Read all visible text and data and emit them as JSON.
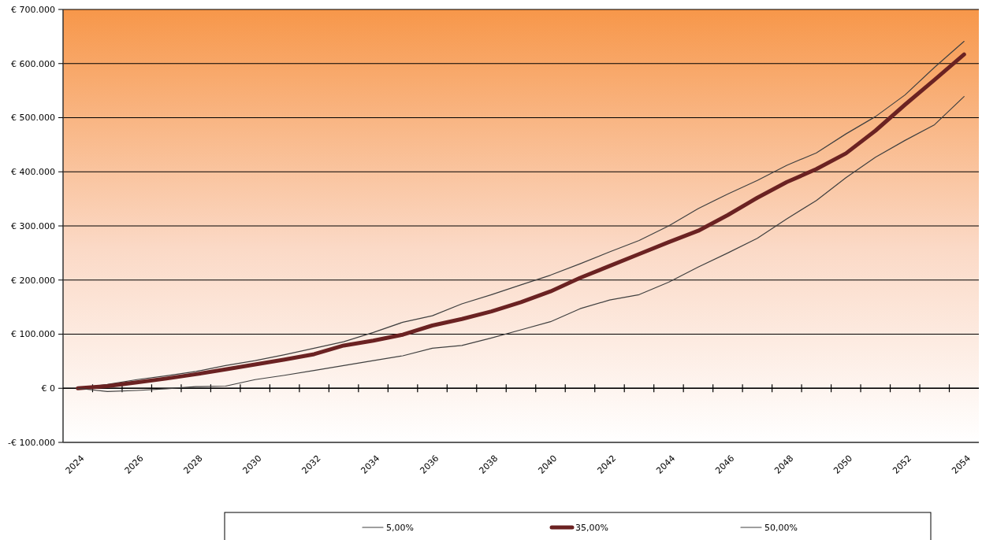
{
  "chart_data": {
    "type": "line",
    "categories": [
      "2024",
      null,
      "2026",
      null,
      "2028",
      null,
      "2030",
      null,
      "2032",
      null,
      "2034",
      null,
      "2036",
      null,
      "2038",
      null,
      "2040",
      null,
      "2042",
      null,
      "2044",
      null,
      "2046",
      null,
      "2048",
      null,
      "2050",
      null,
      "2052",
      null,
      "2054"
    ],
    "series": [
      {
        "name": "5,00%",
        "color": "#404040",
        "values": [
          0,
          7000,
          16000,
          23000,
          31000,
          42000,
          51000,
          62000,
          74000,
          86000,
          103000,
          122000,
          134000,
          156000,
          173000,
          191000,
          209000,
          230000,
          252000,
          273000,
          300000,
          332000,
          359000,
          384000,
          412000,
          435000,
          470000,
          502000,
          542000,
          593000,
          641000
        ]
      },
      {
        "name": "35,00%",
        "color": "#6b2222",
        "values": [
          0,
          4000,
          11000,
          18000,
          26000,
          35000,
          44000,
          53000,
          63000,
          79000,
          88000,
          99000,
          116000,
          128000,
          142000,
          159000,
          179000,
          204000,
          226000,
          248000,
          270000,
          291000,
          320000,
          352000,
          381000,
          405000,
          434000,
          476000,
          524000,
          570000,
          617000
        ]
      },
      {
        "name": "50,00%",
        "color": "#404040",
        "values": [
          0,
          -6000,
          -4000,
          -1000,
          3000,
          4000,
          16000,
          24000,
          33000,
          42000,
          51000,
          60000,
          74000,
          79000,
          93000,
          108000,
          123000,
          147000,
          163000,
          173000,
          196000,
          224000,
          250000,
          277000,
          313000,
          347000,
          389000,
          427000,
          458000,
          487000,
          539000
        ]
      }
    ],
    "ylim": [
      -100000,
      700000
    ],
    "yticks": [
      {
        "value": -100000,
        "label": "-€ 100.000"
      },
      {
        "value": 0,
        "label": "€ 0"
      },
      {
        "value": 100000,
        "label": "€ 100.000"
      },
      {
        "value": 200000,
        "label": "€ 200.000"
      },
      {
        "value": 300000,
        "label": "€ 300.000"
      },
      {
        "value": 400000,
        "label": "€ 400.000"
      },
      {
        "value": 500000,
        "label": "€ 500.000"
      },
      {
        "value": 600000,
        "label": "€ 600.000"
      },
      {
        "value": 700000,
        "label": "€ 700.000"
      }
    ],
    "grid": "y",
    "legend": "bottom",
    "marker": "none",
    "line_style": "solid"
  }
}
